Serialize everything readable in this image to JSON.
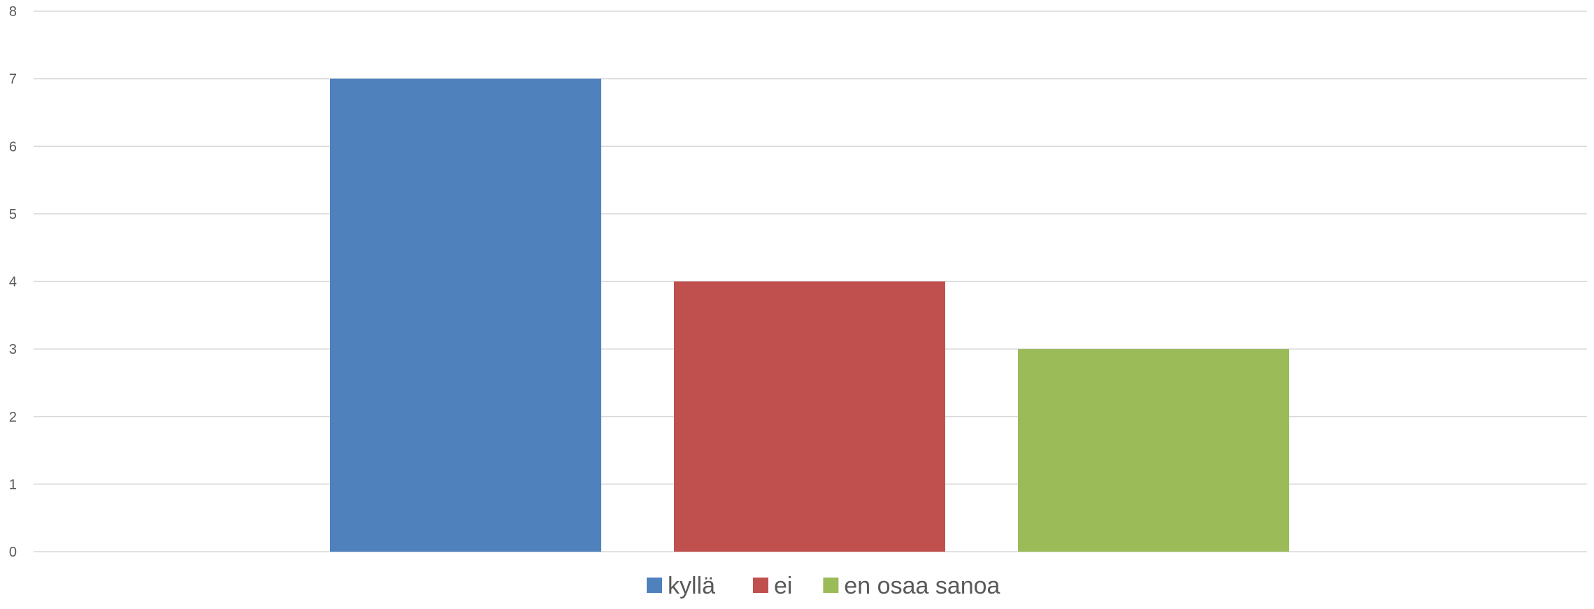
{
  "chart_data": {
    "type": "bar",
    "categories": [
      ""
    ],
    "series": [
      {
        "name": "kyllä",
        "values": [
          7
        ],
        "color": "#4f81bd"
      },
      {
        "name": "ei",
        "values": [
          4
        ],
        "color": "#c0504d"
      },
      {
        "name": "en osaa sanoa",
        "values": [
          3
        ],
        "color": "#9bbb59"
      }
    ],
    "title": "",
    "xlabel": "",
    "ylabel": "",
    "ylim": [
      0,
      8
    ],
    "yticks": [
      0,
      1,
      2,
      3,
      4,
      5,
      6,
      7,
      8
    ],
    "grid": true,
    "legend_position": "bottom"
  }
}
